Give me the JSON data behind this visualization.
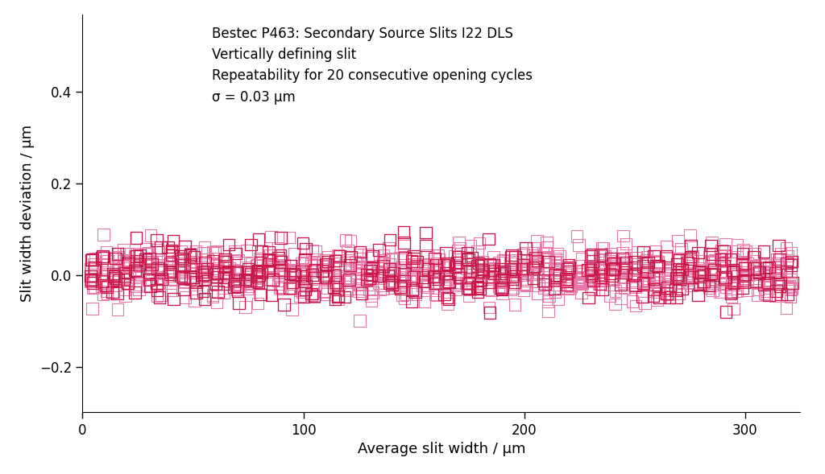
{
  "xlabel": "Average slit width / μm",
  "ylabel": "Slit width deviation / μm",
  "annotation_lines": [
    "Bestec P463: Secondary Source Slits I22 DLS",
    "Vertically defining slit",
    "Repeatability for 20 consecutive opening cycles",
    "σ = 0.03 μm"
  ],
  "xlim": [
    0,
    325
  ],
  "ylim": [
    -0.3,
    0.57
  ],
  "yticks": [
    -0.2,
    0.0,
    0.2,
    0.4
  ],
  "xticks": [
    0,
    100,
    200,
    300
  ],
  "marker_color_dark": "#c8184a",
  "marker_color_light": "#e87aaa",
  "sigma": 0.03,
  "n_cycles": 20,
  "background_color": "#ffffff",
  "tick_direction": "out",
  "spine_color": "#000000",
  "annotation_fontsize": 12,
  "axis_fontsize": 13
}
